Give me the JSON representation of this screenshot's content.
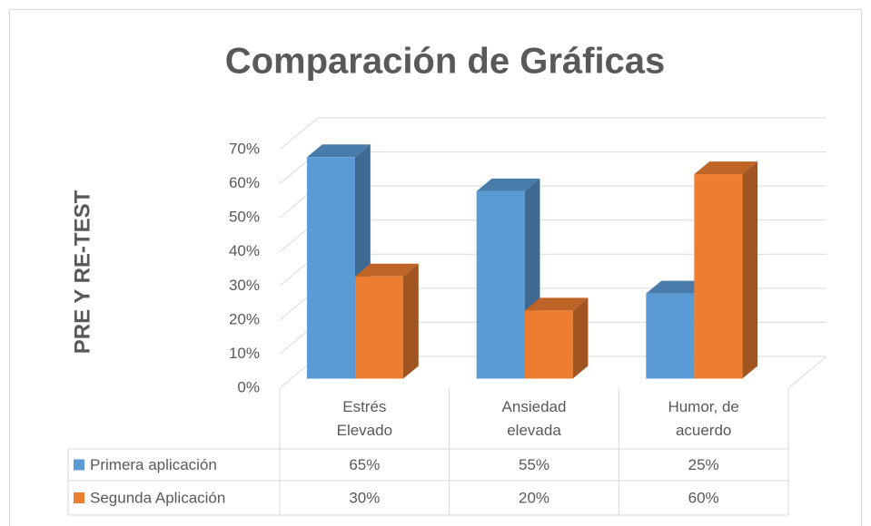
{
  "chart_data": {
    "type": "bar3d",
    "title": "Comparación de Gráficas",
    "y_label": "PRE Y RE-TEST",
    "categories": [
      "Estrés Elevado",
      "Ansiedad elevada",
      "Humor, de acuerdo"
    ],
    "series": [
      {
        "name": "Primera aplicación",
        "color": "#5b9bd5",
        "values": [
          65,
          55,
          25
        ],
        "value_labels": [
          "65%",
          "55%",
          "25%"
        ]
      },
      {
        "name": "Segunda Aplicación",
        "color": "#ed7d31",
        "values": [
          30,
          20,
          60
        ],
        "value_labels": [
          "30%",
          "20%",
          "60%"
        ]
      }
    ],
    "ylim": [
      0,
      70
    ],
    "yticks": [
      {
        "value": 0,
        "label": "0%"
      },
      {
        "value": 10,
        "label": "10%"
      },
      {
        "value": 20,
        "label": "20%"
      },
      {
        "value": 30,
        "label": "30%"
      },
      {
        "value": 40,
        "label": "40%"
      },
      {
        "value": 50,
        "label": "50%"
      },
      {
        "value": 60,
        "label": "60%"
      },
      {
        "value": 70,
        "label": "70%"
      }
    ],
    "grid": true,
    "data_table": true
  }
}
